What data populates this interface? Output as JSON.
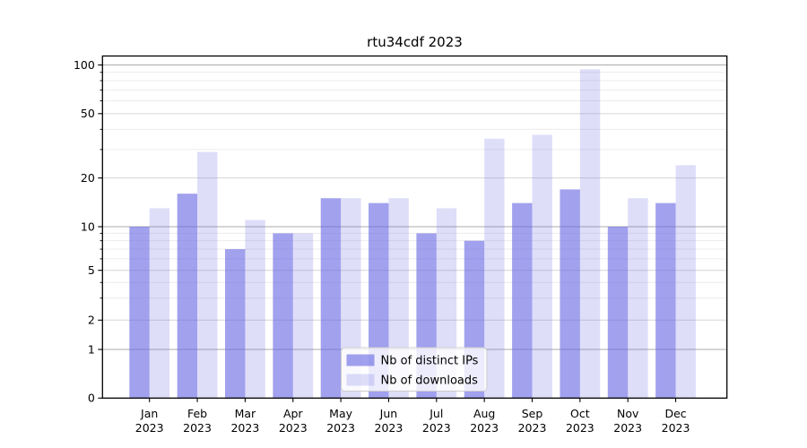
{
  "chart_data": {
    "type": "bar",
    "title": "rtu34cdf 2023",
    "year_label": "2023",
    "categories": [
      "Jan",
      "Feb",
      "Mar",
      "Apr",
      "May",
      "Jun",
      "Jul",
      "Aug",
      "Sep",
      "Oct",
      "Nov",
      "Dec"
    ],
    "series": [
      {
        "name": "Nb of distinct IPs",
        "color": "rgba(104,104,228,0.62)",
        "values": [
          10,
          16,
          7,
          9,
          15,
          14,
          9,
          8,
          14,
          17,
          10,
          14
        ]
      },
      {
        "name": "Nb of downloads",
        "color": "rgba(104,104,228,0.22)",
        "values": [
          13,
          29,
          11,
          9,
          15,
          15,
          13,
          35,
          37,
          94,
          15,
          24
        ]
      }
    ],
    "yscale": "log above 1, linear 0-1",
    "ylim": [
      0,
      110
    ],
    "y_major_ticks": [
      0,
      1,
      2,
      5,
      10,
      20,
      50,
      100
    ],
    "y_minor_ticks": [
      3,
      4,
      6,
      7,
      8,
      9,
      30,
      40,
      60,
      70,
      80,
      90
    ],
    "grid": "major and minor horizontal gridlines",
    "legend_position": "inside lower center"
  },
  "colors": {
    "background": "#ffffff",
    "bar_base": "#6868e4",
    "grid_decade": "#ababab",
    "grid_major": "#d6d6d6",
    "grid_minor": "#ececec",
    "axis": "#000000",
    "legend_border": "#cccccc",
    "legend_bg": "rgba(255,255,255,0.8)"
  }
}
